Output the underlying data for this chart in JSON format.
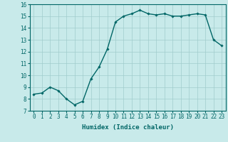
{
  "xlabel": "Humidex (Indice chaleur)",
  "x_values": [
    0,
    1,
    2,
    3,
    4,
    5,
    6,
    7,
    8,
    9,
    10,
    11,
    12,
    13,
    14,
    15,
    16,
    17,
    18,
    19,
    20,
    21,
    22,
    23
  ],
  "y_values": [
    8.4,
    8.5,
    9.0,
    8.7,
    8.0,
    7.5,
    7.8,
    9.7,
    10.7,
    12.2,
    14.5,
    15.0,
    15.2,
    15.5,
    15.2,
    15.1,
    15.2,
    15.0,
    15.0,
    15.1,
    15.2,
    15.1,
    13.0,
    12.5
  ],
  "xlim": [
    -0.5,
    23.5
  ],
  "ylim": [
    7,
    16
  ],
  "yticks": [
    7,
    8,
    9,
    10,
    11,
    12,
    13,
    14,
    15,
    16
  ],
  "xticks": [
    0,
    1,
    2,
    3,
    4,
    5,
    6,
    7,
    8,
    9,
    10,
    11,
    12,
    13,
    14,
    15,
    16,
    17,
    18,
    19,
    20,
    21,
    22,
    23
  ],
  "line_color": "#006666",
  "bg_color": "#c8eaea",
  "grid_color": "#a0cccc",
  "marker": "D",
  "marker_size": 1.8,
  "line_width": 1.0,
  "label_fontsize": 6.5,
  "tick_fontsize": 5.5
}
